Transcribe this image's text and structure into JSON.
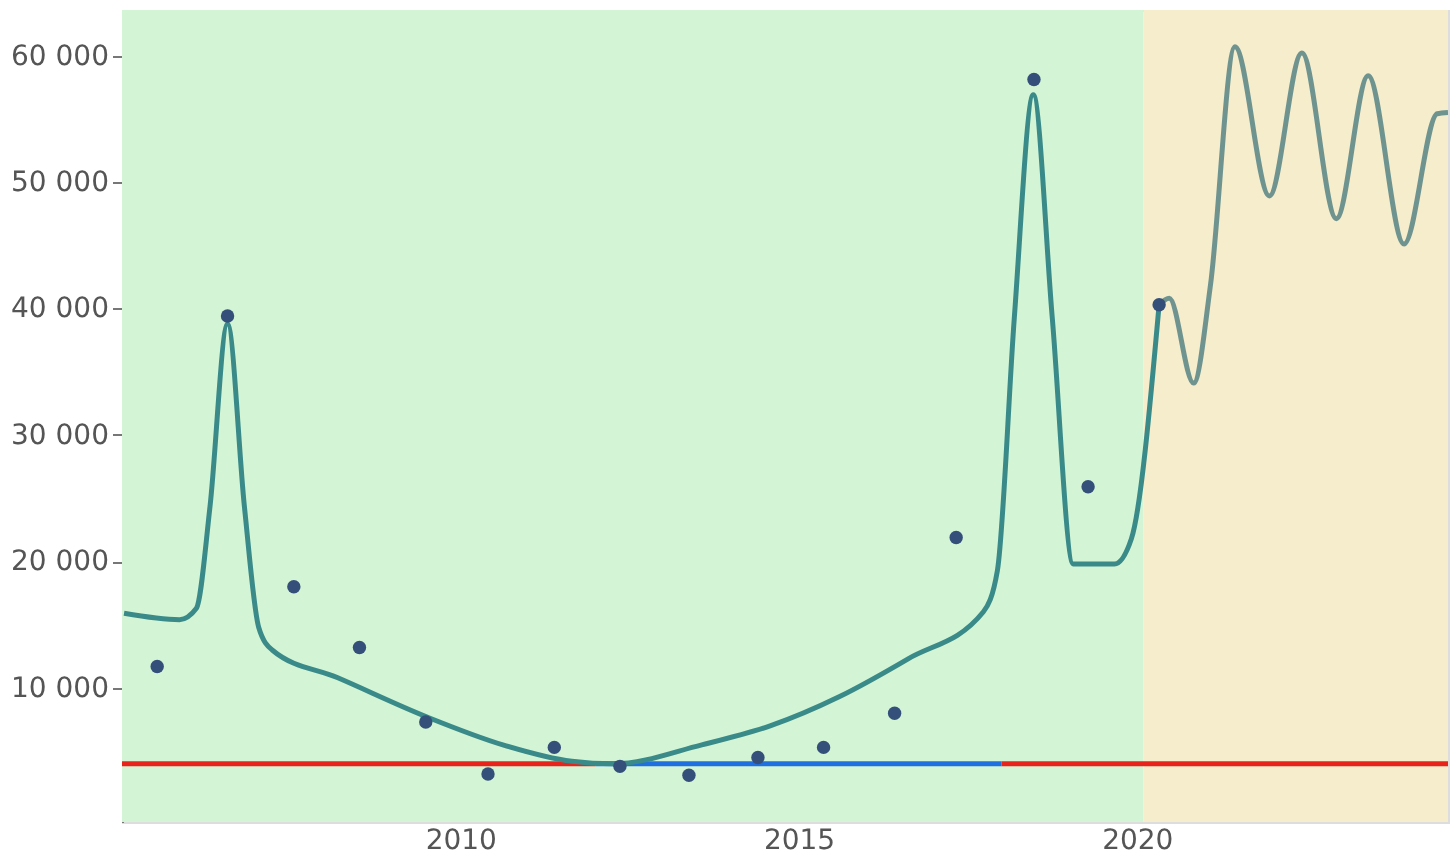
{
  "chart_data": {
    "type": "line",
    "xlim": [
      2005,
      2024.6
    ],
    "ylim": [
      -600,
      63600
    ],
    "xticks": [
      2010,
      2015,
      2020
    ],
    "yticks": [
      {
        "value": 10000,
        "label": "10 000"
      },
      {
        "value": 20000,
        "label": "20 000"
      },
      {
        "value": 30000,
        "label": "30 000"
      },
      {
        "value": 40000,
        "label": "40 000"
      },
      {
        "value": 50000,
        "label": "50 000"
      },
      {
        "value": 60000,
        "label": "60 000"
      }
    ],
    "grid": false,
    "line_style": "solid",
    "bands": [
      {
        "axis": "x",
        "from": 2005,
        "to": 2020.1,
        "color": "#d3f5d5"
      },
      {
        "axis": "x",
        "from": 2020.1,
        "to": 2024.6,
        "color": "#f5edcc"
      }
    ],
    "series": [
      {
        "color": "#e8231b",
        "x": [
          2005,
          2012
        ],
        "values": [
          4000,
          4000
        ]
      },
      {
        "color": "#1f6fe0",
        "x": [
          2012,
          2018
        ],
        "values": [
          4000,
          4000
        ]
      },
      {
        "color": "#e8231b",
        "x": [
          2018,
          2024.6
        ],
        "values": [
          4000,
          4000
        ]
      },
      {
        "color": "#3a8a8a",
        "x": [
          2005.03,
          2005.85,
          2006.1,
          2006.3,
          2006.56,
          2006.81,
          2007.02,
          2007.22,
          2008.19,
          2009.51,
          2010.63,
          2011.65,
          2012.26,
          2013.57,
          2014.58,
          2015.6,
          2016.62,
          2017.73,
          2017.94,
          2018.19,
          2018.47,
          2018.75,
          2019.06,
          2019.67,
          2019.92,
          2020.33
        ],
        "values": [
          15900,
          15400,
          16300,
          24300,
          38800,
          24300,
          14800,
          13000,
          10800,
          7700,
          5500,
          4200,
          4000,
          5500,
          7000,
          9300,
          12300,
          16000,
          19300,
          39300,
          56900,
          39300,
          19800,
          19800,
          21800,
          40300
        ]
      },
      {
        "color": "#6f9490",
        "x": [
          2020.33,
          2020.48,
          2020.84,
          2021.09,
          2021.45,
          2021.96,
          2022.44,
          2022.95,
          2023.42,
          2023.95,
          2024.44,
          2024.6
        ],
        "values": [
          40300,
          40800,
          34100,
          41900,
          60700,
          48900,
          60200,
          47100,
          58400,
          45100,
          55400,
          55500
        ]
      },
      {
        "type": "scatter",
        "color": "#34507a",
        "marker": "circle",
        "x": [
          2005.52,
          2006.56,
          2007.54,
          2008.51,
          2009.49,
          2010.41,
          2011.39,
          2012.36,
          2013.38,
          2014.4,
          2015.37,
          2016.42,
          2017.33,
          2018.48,
          2019.28,
          2020.33
        ],
        "values": [
          11700,
          39400,
          18000,
          13200,
          7300,
          3200,
          5300,
          3800,
          3100,
          4500,
          5300,
          8000,
          21900,
          58100,
          25900,
          40300
        ]
      }
    ]
  }
}
